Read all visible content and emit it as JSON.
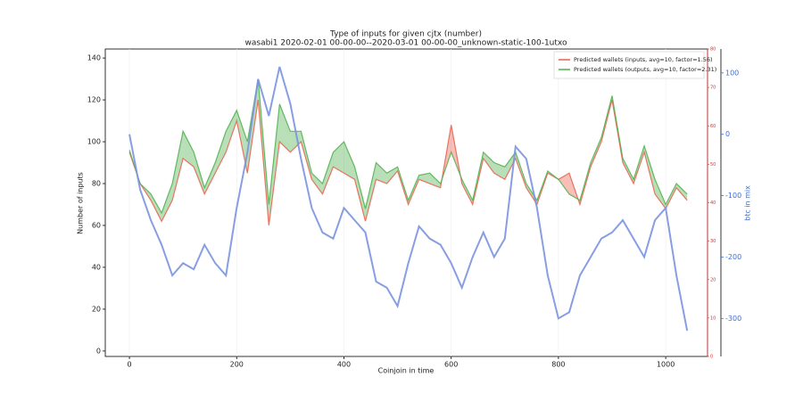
{
  "chart_data": {
    "type": "line",
    "title": "Type of inputs for given cjtx (number)",
    "subtitle": "wasabi1 2020-02-01 00-00-00--2020-03-01 00-00-00_unknown-static-100-1utxo",
    "xlabel": "Coinjoin in time",
    "ylabel": "Number of inputs",
    "y2label": "btc in mix",
    "xlim": [
      -45,
      1078
    ],
    "xticks": [
      0,
      200,
      400,
      600,
      800,
      1000
    ],
    "ylim": [
      -2.6,
      144.3
    ],
    "yticks": [
      0,
      20,
      40,
      60,
      80,
      100,
      120,
      140
    ],
    "y2lim": [
      -362,
      139
    ],
    "y2ticks": [
      100,
      0,
      -100,
      -200,
      -300
    ],
    "y3lim": [
      0,
      80
    ],
    "y3ticks": [
      0,
      10,
      20,
      30,
      40,
      50,
      60,
      70,
      80
    ],
    "legend": "upper right",
    "x": [
      0,
      20,
      40,
      60,
      80,
      100,
      120,
      140,
      160,
      180,
      200,
      220,
      240,
      260,
      280,
      300,
      320,
      340,
      360,
      380,
      400,
      420,
      440,
      460,
      480,
      500,
      520,
      540,
      560,
      580,
      600,
      620,
      640,
      660,
      680,
      700,
      720,
      740,
      760,
      780,
      800,
      820,
      840,
      860,
      880,
      900,
      920,
      940,
      960,
      980,
      1000,
      1020,
      1040
    ],
    "series": [
      {
        "name": "Predicted wallets (inputs, avg=10, factor=1.56)",
        "color": "#e8604c",
        "values": [
          95,
          80,
          72,
          62,
          72,
          92,
          88,
          75,
          85,
          95,
          110,
          85,
          120,
          60,
          100,
          95,
          100,
          82,
          75,
          88,
          85,
          82,
          62,
          82,
          80,
          86,
          70,
          82,
          80,
          78,
          108,
          80,
          70,
          92,
          85,
          82,
          92,
          78,
          70,
          85,
          82,
          85,
          70,
          88,
          100,
          120,
          90,
          80,
          95,
          75,
          68,
          78,
          72
        ]
      },
      {
        "name": "Predicted wallets (outputs, avg=10, factor=2.31)",
        "color": "#4daf4a",
        "values": [
          96,
          80,
          75,
          66,
          80,
          105,
          95,
          78,
          90,
          105,
          115,
          100,
          130,
          70,
          118,
          105,
          105,
          85,
          80,
          95,
          100,
          88,
          68,
          90,
          85,
          88,
          72,
          84,
          85,
          80,
          95,
          82,
          72,
          95,
          90,
          88,
          95,
          80,
          72,
          86,
          82,
          75,
          72,
          90,
          102,
          122,
          92,
          82,
          98,
          82,
          70,
          80,
          75
        ]
      },
      {
        "name": null,
        "color": "#7b93e0",
        "axis": "y2",
        "values": [
          0,
          -90,
          -140,
          -180,
          -230,
          -210,
          -220,
          -180,
          -210,
          -230,
          -120,
          -30,
          90,
          30,
          110,
          50,
          -40,
          -120,
          -160,
          -170,
          -120,
          -140,
          -160,
          -240,
          -250,
          -280,
          -210,
          -150,
          -170,
          -180,
          -210,
          -250,
          -200,
          -160,
          -200,
          -170,
          -20,
          -40,
          -120,
          -230,
          -300,
          -290,
          -230,
          -200,
          -170,
          -160,
          -140,
          -170,
          -200,
          -140,
          -120,
          -230,
          -320
        ]
      }
    ]
  }
}
